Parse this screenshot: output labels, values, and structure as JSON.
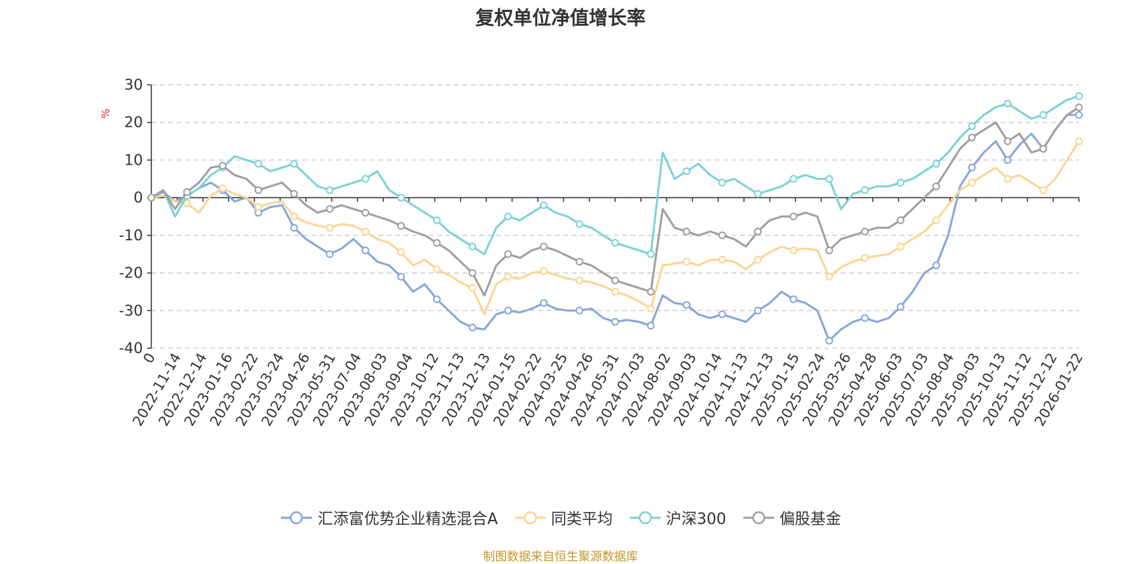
{
  "chart_data": {
    "type": "line",
    "title": "复权单位净值增长率",
    "ylabel": "%",
    "xlabel": "",
    "ylim": [
      -40,
      30
    ],
    "yticks": [
      30,
      20,
      10,
      0,
      -10,
      -20,
      -30,
      -40
    ],
    "x_tick_labels": [
      "0",
      "2022-11-14",
      "2022-12-14",
      "2023-01-16",
      "2023-02-22",
      "2023-03-24",
      "2023-04-26",
      "2023-05-31",
      "2023-07-04",
      "2023-08-03",
      "2023-09-04",
      "2023-10-12",
      "2023-11-13",
      "2023-12-13",
      "2024-01-15",
      "2024-02-22",
      "2024-03-25",
      "2024-04-26",
      "2024-05-31",
      "2024-07-03",
      "2024-08-02",
      "2024-09-03",
      "2024-10-14",
      "2024-11-13",
      "2024-12-13",
      "2025-01-15",
      "2025-02-24",
      "2025-03-26",
      "2025-04-28",
      "2025-06-03",
      "2025-07-03",
      "2025-08-04",
      "2025-09-03",
      "2025-10-13",
      "2025-11-12",
      "2025-12-12",
      "2026-01-22"
    ],
    "grid": true,
    "legend_position": "bottom",
    "series": [
      {
        "name": "汇添富优势企业精选混合A",
        "color": "#87a7d8",
        "values": [
          0,
          1.5,
          -1,
          0.5,
          2.5,
          4,
          2,
          -1,
          0,
          -4,
          -2.5,
          -2,
          -8,
          -11,
          -13,
          -15,
          -13.5,
          -11,
          -14,
          -17,
          -18,
          -21,
          -25,
          -23,
          -27,
          -30,
          -33,
          -34.5,
          -35,
          -31,
          -30,
          -30.5,
          -29.5,
          -28,
          -29.5,
          -30,
          -30,
          -29.5,
          -32,
          -33,
          -32.5,
          -33,
          -34,
          -26,
          -28,
          -28.5,
          -31,
          -32,
          -31,
          -32,
          -33,
          -30,
          -28,
          -25,
          -27,
          -28,
          -30,
          -38,
          -35,
          -33,
          -32,
          -33,
          -32,
          -29,
          -25,
          -20,
          -18,
          -10,
          3,
          8,
          12,
          15,
          10,
          14,
          17,
          13,
          18,
          22,
          22
        ]
      },
      {
        "name": "同类平均",
        "color": "#fbd593",
        "values": [
          0,
          0.5,
          -1,
          -1.5,
          -4,
          0.5,
          2.5,
          1,
          0,
          -2.5,
          -1.5,
          -1,
          -5,
          -6.5,
          -7.5,
          -8,
          -7,
          -7.5,
          -9,
          -11,
          -12,
          -14.5,
          -18,
          -16.5,
          -19,
          -20.5,
          -22.5,
          -24,
          -31,
          -23,
          -21,
          -21.5,
          -20,
          -19.5,
          -20.5,
          -21.5,
          -22,
          -22.5,
          -23.5,
          -25,
          -26,
          -27.5,
          -29.5,
          -18,
          -17.5,
          -17,
          -18,
          -16.5,
          -16.5,
          -17,
          -19,
          -16.5,
          -14.5,
          -13,
          -14,
          -13.5,
          -14,
          -21,
          -18.5,
          -17,
          -16,
          -15.5,
          -15,
          -13,
          -11,
          -9,
          -6,
          -2,
          2,
          4,
          6,
          8,
          5,
          6,
          4,
          2,
          5,
          10,
          15
        ]
      },
      {
        "name": "沪深300",
        "color": "#7dd2d6",
        "values": [
          0,
          2,
          -5,
          0.5,
          2.5,
          6,
          8,
          11,
          10,
          9,
          7,
          8,
          9,
          6,
          3,
          2,
          3,
          4,
          5,
          7,
          2,
          0,
          -2,
          -4,
          -6,
          -9,
          -11,
          -13,
          -15,
          -8,
          -5,
          -6,
          -4,
          -2,
          -4,
          -5,
          -7,
          -8,
          -10,
          -12,
          -13,
          -14,
          -15,
          12,
          5,
          7,
          9,
          6,
          4,
          5,
          3,
          1,
          2,
          3,
          5,
          6,
          5,
          5,
          -3,
          1,
          2,
          3,
          3,
          4,
          5,
          7,
          9,
          12,
          16,
          19,
          22,
          24,
          25,
          23,
          21,
          22,
          24,
          26,
          27
        ]
      },
      {
        "name": "偏股基金",
        "color": "#a0a0a0",
        "values": [
          0,
          2,
          -3,
          1.5,
          4,
          8,
          8.5,
          6,
          5,
          2,
          3,
          4,
          1,
          -2,
          -4,
          -3,
          -2,
          -3,
          -4,
          -5,
          -6,
          -7.5,
          -9,
          -10,
          -12,
          -14,
          -17,
          -20,
          -26,
          -18,
          -15,
          -16,
          -14,
          -13,
          -14,
          -15.5,
          -17,
          -18,
          -20,
          -22,
          -23,
          -24,
          -25,
          -3,
          -8,
          -9,
          -10,
          -9,
          -10,
          -11,
          -13,
          -9,
          -6,
          -5,
          -5,
          -4,
          -5,
          -14,
          -11,
          -10,
          -9,
          -8,
          -8,
          -6,
          -3,
          0,
          3,
          8,
          13,
          16,
          18,
          20,
          15,
          17,
          12,
          13,
          18,
          22,
          24
        ]
      }
    ],
    "source": "制图数据来自恒生聚源数据库"
  }
}
